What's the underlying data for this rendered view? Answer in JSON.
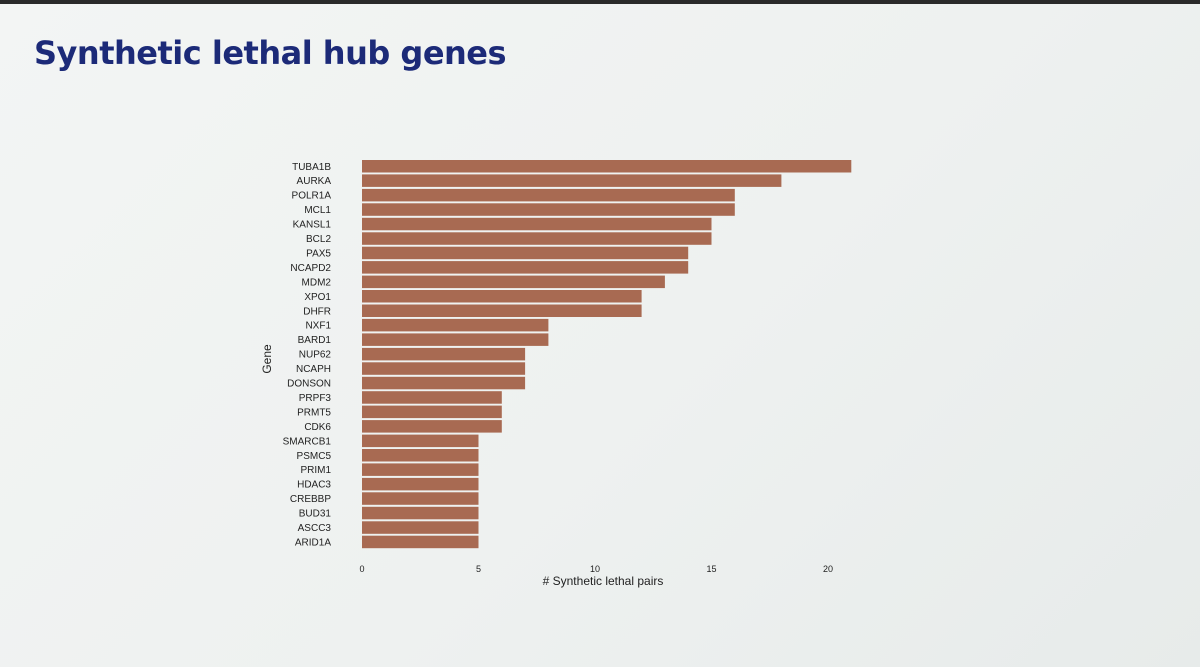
{
  "slide": {
    "title": "Synthetic lethal hub genes"
  },
  "chart_data": {
    "type": "bar",
    "orientation": "horizontal",
    "title": "",
    "xlabel": "# Synthetic lethal pairs",
    "ylabel": "Gene",
    "xlim": [
      0,
      21
    ],
    "xticks": [
      0,
      5,
      10,
      15,
      20
    ],
    "grid": false,
    "bar_color": "#a86a52",
    "categories": [
      "TUBA1B",
      "AURKA",
      "POLR1A",
      "MCL1",
      "KANSL1",
      "BCL2",
      "PAX5",
      "NCAPD2",
      "MDM2",
      "XPO1",
      "DHFR",
      "NXF1",
      "BARD1",
      "NUP62",
      "NCAPH",
      "DONSON",
      "PRPF3",
      "PRMT5",
      "CDK6",
      "SMARCB1",
      "PSMC5",
      "PRIM1",
      "HDAC3",
      "CREBBP",
      "BUD31",
      "ASCC3",
      "ARID1A"
    ],
    "values": [
      21,
      18,
      16,
      16,
      15,
      15,
      14,
      14,
      13,
      12,
      12,
      8,
      8,
      7,
      7,
      7,
      6,
      6,
      6,
      5,
      5,
      5,
      5,
      5,
      5,
      5,
      5
    ]
  }
}
